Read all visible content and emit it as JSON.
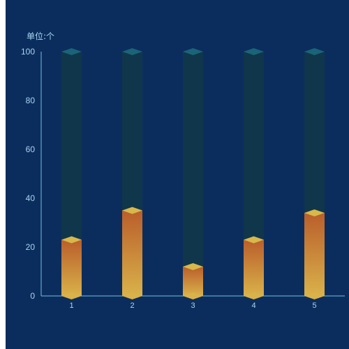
{
  "chart_data": {
    "type": "bar",
    "unit_label": "单位:个",
    "categories": [
      "1",
      "2",
      "3",
      "4",
      "5"
    ],
    "values": [
      23,
      35,
      12,
      23,
      34
    ],
    "background_max": 100,
    "ylim": [
      0,
      100
    ],
    "yticks": [
      "0",
      "20",
      "40",
      "60",
      "80",
      "100"
    ],
    "colors": {
      "panel_background": "#0b2d5e",
      "axis": "#6fc3df",
      "track": "#10364b",
      "track_top": "#1a6478",
      "bar_top": "#b95e2b",
      "bar_bottom": "#d9b24a",
      "bar_cap": "#d8b84a",
      "tick_text": "#a9d6ee"
    }
  }
}
